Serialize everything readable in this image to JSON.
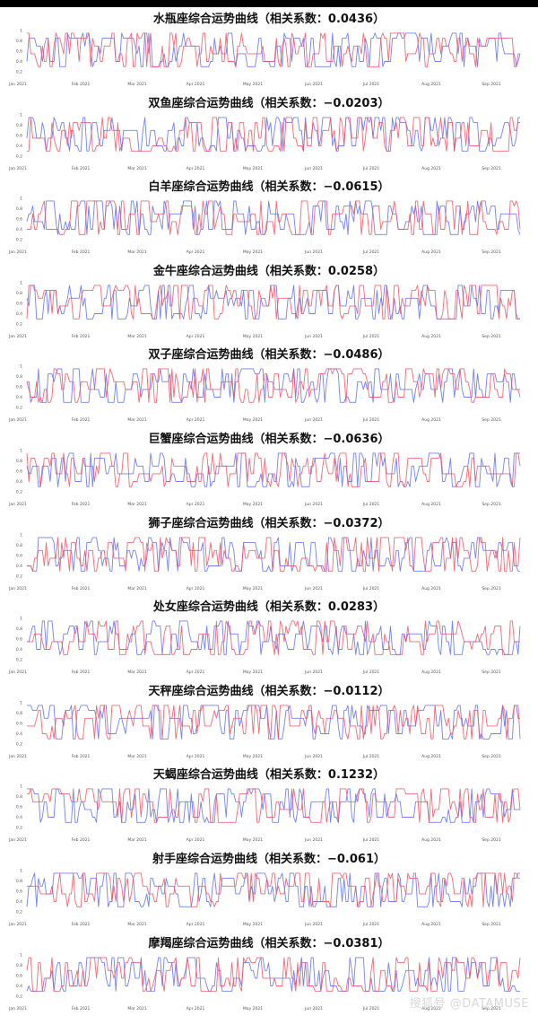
{
  "watermark": "搜狐号 @DATAMUSE",
  "colors": {
    "blue": "#5b6cf0",
    "red": "#f0505f",
    "tick": "#555555"
  },
  "chart_data": [
    {
      "type": "line",
      "title": "水瓶座综合运势曲线（相关系数：0.0436）",
      "x_ticks": [
        "Jan 2021",
        "Feb 2021",
        "Mar 2021",
        "Apr 2021",
        "May 2021",
        "Jun 2021",
        "Jul 2021",
        "Aug 2021",
        "Sep 2021"
      ],
      "y_ticks": [
        "0.2",
        "0.4",
        "0.6",
        "0.8",
        "1"
      ],
      "ylim": [
        0.2,
        1
      ],
      "series_colors": [
        "#5b6cf0",
        "#f0505f"
      ]
    },
    {
      "type": "line",
      "title": "双鱼座综合运势曲线（相关系数：−0.0203）",
      "x_ticks": [
        "Jan 2021",
        "Feb 2021",
        "Mar 2021",
        "Apr 2021",
        "May 2021",
        "Jun 2021",
        "Jul 2021",
        "Aug 2021",
        "Sep 2021"
      ],
      "y_ticks": [
        "0.2",
        "0.4",
        "0.6",
        "0.8",
        "1"
      ],
      "ylim": [
        0.2,
        1
      ],
      "series_colors": [
        "#5b6cf0",
        "#f0505f"
      ]
    },
    {
      "type": "line",
      "title": "白羊座综合运势曲线（相关系数：−0.0615）",
      "x_ticks": [
        "Jan 2021",
        "Feb 2021",
        "Mar 2021",
        "Apr 2021",
        "May 2021",
        "Jun 2021",
        "Jul 2021",
        "Aug 2021",
        "Sep 2021"
      ],
      "y_ticks": [
        "0.2",
        "0.4",
        "0.6",
        "0.8",
        "1"
      ],
      "ylim": [
        0.2,
        1
      ],
      "series_colors": [
        "#5b6cf0",
        "#f0505f"
      ]
    },
    {
      "type": "line",
      "title": "金牛座综合运势曲线（相关系数：0.0258）",
      "x_ticks": [
        "Jan 2021",
        "Feb 2021",
        "Mar 2021",
        "Apr 2021",
        "May 2021",
        "Jun 2021",
        "Jul 2021",
        "Aug 2021",
        "Sep 2021"
      ],
      "y_ticks": [
        "0.2",
        "0.4",
        "0.6",
        "0.8",
        "1"
      ],
      "ylim": [
        0.2,
        1
      ],
      "series_colors": [
        "#5b6cf0",
        "#f0505f"
      ]
    },
    {
      "type": "line",
      "title": "双子座综合运势曲线（相关系数：−0.0486）",
      "x_ticks": [
        "Jan 2021",
        "Feb 2021",
        "Mar 2021",
        "Apr 2021",
        "May 2021",
        "Jun 2021",
        "Jul 2021",
        "Aug 2021",
        "Sep 2021"
      ],
      "y_ticks": [
        "0.2",
        "0.4",
        "0.6",
        "0.8",
        "1"
      ],
      "ylim": [
        0.2,
        1
      ],
      "series_colors": [
        "#5b6cf0",
        "#f0505f"
      ]
    },
    {
      "type": "line",
      "title": "巨蟹座综合运势曲线（相关系数：−0.0636）",
      "x_ticks": [
        "Jan 2021",
        "Feb 2021",
        "Mar 2021",
        "Apr 2021",
        "May 2021",
        "Jun 2021",
        "Jul 2021",
        "Aug 2021",
        "Sep 2021"
      ],
      "y_ticks": [
        "0.2",
        "0.4",
        "0.6",
        "0.8",
        "1"
      ],
      "ylim": [
        0.2,
        1
      ],
      "series_colors": [
        "#5b6cf0",
        "#f0505f"
      ]
    },
    {
      "type": "line",
      "title": "狮子座综合运势曲线（相关系数：−0.0372）",
      "x_ticks": [
        "Jan 2021",
        "Feb 2021",
        "Mar 2021",
        "Apr 2021",
        "May 2021",
        "Jun 2021",
        "Jul 2021",
        "Aug 2021",
        "Sep 2021"
      ],
      "y_ticks": [
        "0.2",
        "0.4",
        "0.6",
        "0.8",
        "1"
      ],
      "ylim": [
        0.2,
        1
      ],
      "series_colors": [
        "#5b6cf0",
        "#f0505f"
      ]
    },
    {
      "type": "line",
      "title": "处女座综合运势曲线（相关系数：0.0283）",
      "x_ticks": [
        "Jan 2021",
        "Feb 2021",
        "Mar 2021",
        "Apr 2021",
        "May 2021",
        "Jun 2021",
        "Jul 2021",
        "Aug 2021",
        "Sep 2021"
      ],
      "y_ticks": [
        "0.2",
        "0.4",
        "0.6",
        "0.8",
        "1"
      ],
      "ylim": [
        0.2,
        1
      ],
      "series_colors": [
        "#5b6cf0",
        "#f0505f"
      ]
    },
    {
      "type": "line",
      "title": "天秤座综合运势曲线（相关系数：−0.0112）",
      "x_ticks": [
        "Jan 2021",
        "Feb 2021",
        "Mar 2021",
        "Apr 2021",
        "May 2021",
        "Jun 2021",
        "Jul 2021",
        "Aug 2021",
        "Sep 2021"
      ],
      "y_ticks": [
        "0.2",
        "0.4",
        "0.6",
        "0.8",
        "1"
      ],
      "ylim": [
        0.2,
        1
      ],
      "series_colors": [
        "#5b6cf0",
        "#f0505f"
      ]
    },
    {
      "type": "line",
      "title": "天蝎座综合运势曲线（相关系数：0.1232）",
      "x_ticks": [
        "Jan 2021",
        "Feb 2021",
        "Mar 2021",
        "Apr 2021",
        "May 2021",
        "Jun 2021",
        "Jul 2021",
        "Aug 2021",
        "Sep 2021"
      ],
      "y_ticks": [
        "0.2",
        "0.4",
        "0.6",
        "0.8",
        "1"
      ],
      "ylim": [
        0.2,
        1
      ],
      "series_colors": [
        "#5b6cf0",
        "#f0505f"
      ]
    },
    {
      "type": "line",
      "title": "射手座综合运势曲线（相关系数：−0.061）",
      "x_ticks": [
        "Jan 2021",
        "Feb 2021",
        "Mar 2021",
        "Apr 2021",
        "May 2021",
        "Jun 2021",
        "Jul 2021",
        "Aug 2021",
        "Sep 2021"
      ],
      "y_ticks": [
        "0.2",
        "0.4",
        "0.6",
        "0.8",
        "1"
      ],
      "ylim": [
        0.2,
        1
      ],
      "series_colors": [
        "#5b6cf0",
        "#f0505f"
      ]
    },
    {
      "type": "line",
      "title": "摩羯座综合运势曲线（相关系数：−0.0381）",
      "x_ticks": [
        "Jan 2021",
        "Feb 2021",
        "Mar 2021",
        "Apr 2021",
        "May 2021",
        "Jun 2021",
        "Jul 2021",
        "Aug 2021",
        "Sep 2021"
      ],
      "y_ticks": [
        "0.2",
        "0.4",
        "0.6",
        "0.8",
        "1"
      ],
      "ylim": [
        0.2,
        1
      ],
      "series_colors": [
        "#5b6cf0",
        "#f0505f"
      ]
    }
  ]
}
